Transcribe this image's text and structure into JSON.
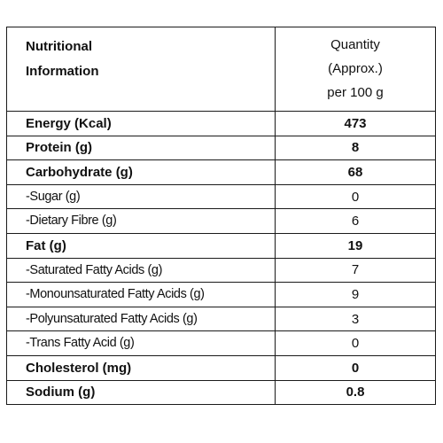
{
  "header": {
    "label_line1": "Nutritional",
    "label_line2": "Information",
    "qty_line1": "Quantity",
    "qty_line2": "(Approx.)",
    "qty_line3": "per 100 g"
  },
  "rows": [
    {
      "label": "Energy (Kcal)",
      "value": "473",
      "bold": true
    },
    {
      "label": "Protein (g)",
      "value": "8",
      "bold": true
    },
    {
      "label": "Carbohydrate (g)",
      "value": "68",
      "bold": true
    },
    {
      "label": "-Sugar (g)",
      "value": "0",
      "bold": false
    },
    {
      "label": "-Dietary Fibre (g)",
      "value": "6",
      "bold": false
    },
    {
      "label": "Fat (g)",
      "value": "19",
      "bold": true
    },
    {
      "label": "-Saturated Fatty Acids (g)",
      "value": "7",
      "bold": false
    },
    {
      "label": "-Monounsaturated Fatty Acids (g)",
      "value": "9",
      "bold": false
    },
    {
      "label": "-Polyunsaturated Fatty Acids (g)",
      "value": "3",
      "bold": false
    },
    {
      "label": "-Trans Fatty Acid (g)",
      "value": "0",
      "bold": false
    },
    {
      "label": "Cholesterol (mg)",
      "value": "0",
      "bold": true
    },
    {
      "label": "Sodium (g)",
      "value": "0.8",
      "bold": true
    }
  ]
}
